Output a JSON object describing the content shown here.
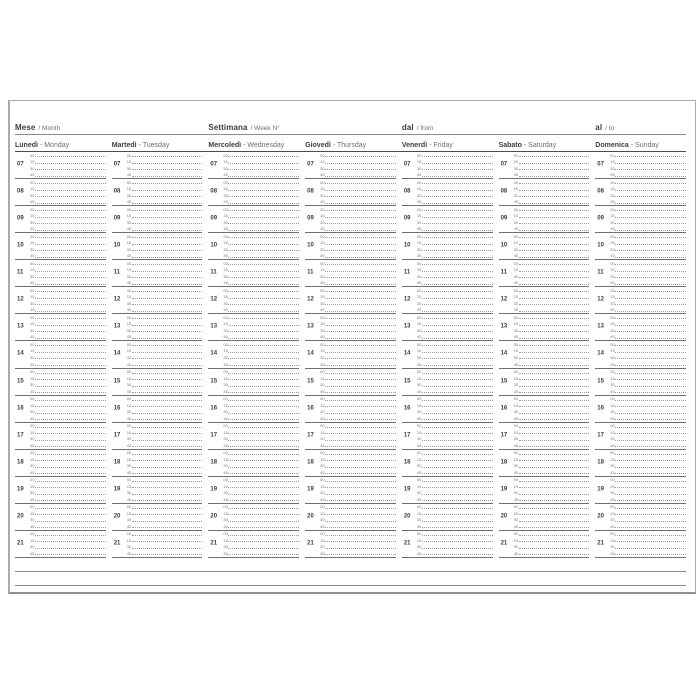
{
  "document_type": "weekly-planner-page",
  "top_header": {
    "fields": [
      {
        "id": "month",
        "label_it": "Mese",
        "label_en": "/ Month"
      },
      {
        "id": "week",
        "label_it": "Settimana",
        "label_en": "/ Week N°"
      },
      {
        "id": "from",
        "label_it": "dal",
        "label_en": "/ from"
      },
      {
        "id": "to",
        "label_it": "al",
        "label_en": "/ to"
      }
    ]
  },
  "day_separator": "-",
  "days": [
    {
      "it": "Lunedì",
      "en": "Monday"
    },
    {
      "it": "Martedì",
      "en": "Tuesday"
    },
    {
      "it": "Mercoledì",
      "en": "Wednesday"
    },
    {
      "it": "Giovedì",
      "en": "Thursday"
    },
    {
      "it": "Venerdì",
      "en": "Friday"
    },
    {
      "it": "Sabato",
      "en": "Saturday"
    },
    {
      "it": "Domenica",
      "en": "Sunday"
    }
  ],
  "hours": [
    "07",
    "08",
    "09",
    "10",
    "11",
    "12",
    "13",
    "14",
    "15",
    "16",
    "17",
    "18",
    "19",
    "20",
    "21"
  ],
  "minutes": [
    "00",
    "15",
    "30",
    "45"
  ],
  "notes_lines_count": 2,
  "colors": {
    "page_background": "#ffffff",
    "page_border": "#ababab",
    "header_underline": "#8c8c8c",
    "day_underline": "#4c4c4c",
    "text_primary": "#3d3d3d",
    "text_secondary": "#6e6e6e",
    "minute_label": "#787878",
    "dotted_line": "#9b9b9b",
    "hour_separator": "#6f6f6f",
    "notes_line": "#8c8c8c"
  }
}
